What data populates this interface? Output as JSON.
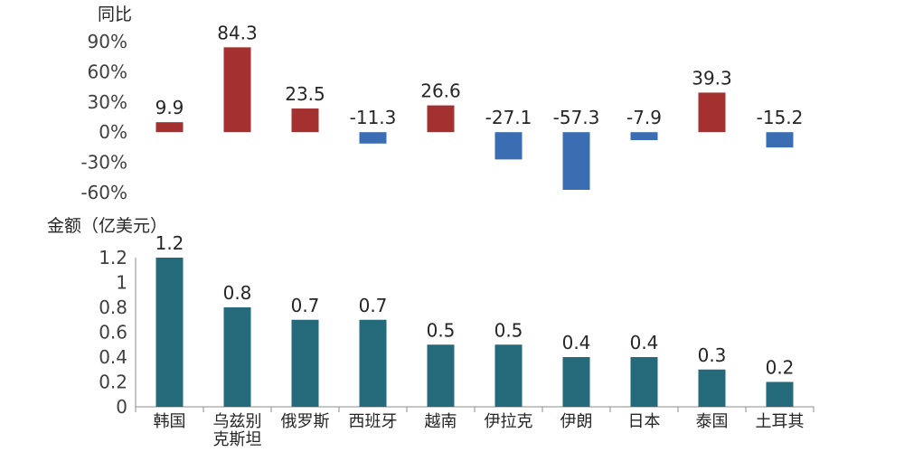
{
  "chart_data": [
    {
      "type": "bar",
      "ylabel": "同比",
      "ylim": [
        -60,
        90
      ],
      "yticks": [
        "90%",
        "60%",
        "30%",
        "0%",
        "-30%",
        "-60%"
      ],
      "ytick_values": [
        90,
        60,
        30,
        0,
        -30,
        -60
      ],
      "categories": [
        "韩国",
        "乌兹别克斯坦",
        "俄罗斯",
        "西班牙",
        "越南",
        "伊拉克",
        "伊朗",
        "日本",
        "泰国",
        "土耳其"
      ],
      "values": [
        9.9,
        84.3,
        23.5,
        -11.3,
        26.6,
        -27.1,
        -57.3,
        -7.9,
        39.3,
        -15.2
      ],
      "value_labels": [
        "9.9",
        "84.3",
        "23.5",
        "-11.3",
        "26.6",
        "-27.1",
        "-57.3",
        "-7.9",
        "39.3",
        "-15.2"
      ],
      "positive_color": "#A4302F",
      "negative_color": "#3B6DB3"
    },
    {
      "type": "bar",
      "ylabel": "金额（亿美元）",
      "ylim": [
        0,
        1.2
      ],
      "yticks": [
        "1.2",
        "1",
        "0.8",
        "0.6",
        "0.4",
        "0.2",
        "0"
      ],
      "ytick_values": [
        1.2,
        1.0,
        0.8,
        0.6,
        0.4,
        0.2,
        0
      ],
      "categories": [
        "韩国",
        "乌兹别克斯坦",
        "俄罗斯",
        "西班牙",
        "越南",
        "伊拉克",
        "伊朗",
        "日本",
        "泰国",
        "土耳其"
      ],
      "category_lines": [
        [
          "韩国"
        ],
        [
          "乌兹别",
          "克斯坦"
        ],
        [
          "俄罗斯"
        ],
        [
          "西班牙"
        ],
        [
          "越南"
        ],
        [
          "伊拉克"
        ],
        [
          "伊朗"
        ],
        [
          "日本"
        ],
        [
          "泰国"
        ],
        [
          "土耳其"
        ]
      ],
      "values": [
        1.2,
        0.8,
        0.7,
        0.7,
        0.5,
        0.5,
        0.4,
        0.4,
        0.3,
        0.2
      ],
      "value_labels": [
        "1.2",
        "0.8",
        "0.7",
        "0.7",
        "0.5",
        "0.5",
        "0.4",
        "0.4",
        "0.3",
        "0.2"
      ],
      "bar_color": "#246A7A"
    }
  ]
}
